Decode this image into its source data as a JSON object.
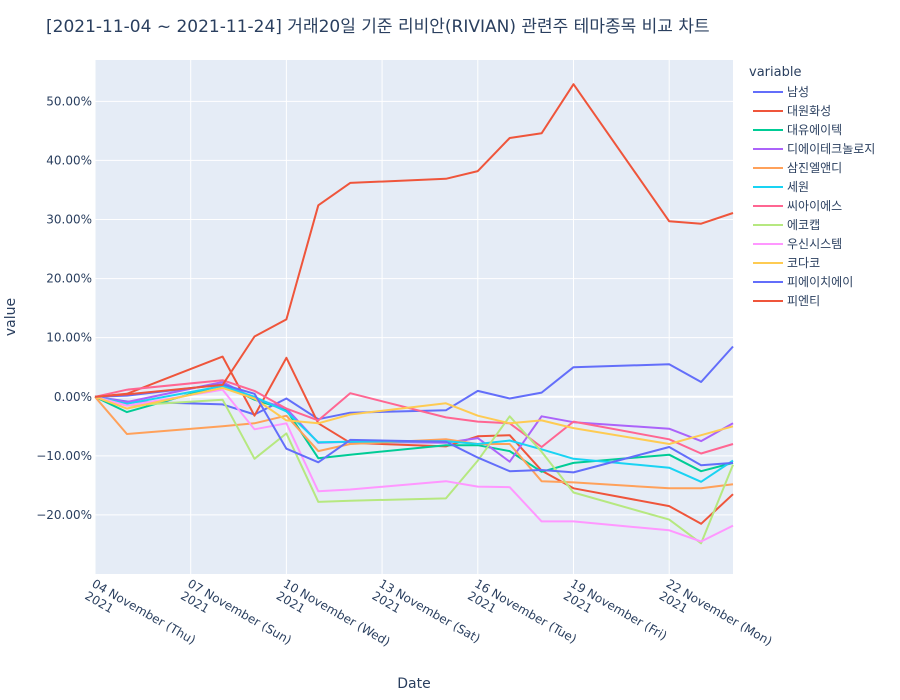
{
  "chart_data": {
    "type": "line",
    "title": "[2021-11-04 ~ 2021-11-24] 거래20일 기준 리비안(RIVIAN) 관련주 테마종목 비교 차트",
    "xlabel": "Date",
    "ylabel": "value",
    "legend_title": "variable",
    "legend_position": "right",
    "grid": true,
    "xlim": [
      "2021-11-04",
      "2021-11-24"
    ],
    "ylim": [
      -0.3,
      0.57
    ],
    "x_tick_values": [
      "2021-11-04",
      "2021-11-07",
      "2021-11-10",
      "2021-11-13",
      "2021-11-16",
      "2021-11-19",
      "2021-11-22"
    ],
    "x_tick_labels": [
      [
        "04 November (Thu)",
        "2021"
      ],
      [
        "07 November (Sun)",
        "2021"
      ],
      [
        "10 November (Wed)",
        "2021"
      ],
      [
        "13 November (Sat)",
        "2021"
      ],
      [
        "16 November (Tue)",
        "2021"
      ],
      [
        "19 November (Fri)",
        "2021"
      ],
      [
        "22 November (Mon)",
        "2021"
      ]
    ],
    "y_tick_values": [
      -0.2,
      -0.1,
      0,
      0.1,
      0.2,
      0.3,
      0.4,
      0.5
    ],
    "y_tick_labels": [
      "−20.00%",
      "−10.00%",
      "0.00%",
      "10.00%",
      "20.00%",
      "30.00%",
      "40.00%",
      "50.00%"
    ],
    "x": [
      "2021-11-04",
      "2021-11-05",
      "2021-11-08",
      "2021-11-09",
      "2021-11-10",
      "2021-11-11",
      "2021-11-12",
      "2021-11-15",
      "2021-11-16",
      "2021-11-17",
      "2021-11-18",
      "2021-11-19",
      "2021-11-22",
      "2021-11-23",
      "2021-11-24"
    ],
    "series": [
      {
        "name": "남성",
        "color": "#636efa",
        "values": [
          0,
          -0.008,
          -0.013,
          -0.03,
          -0.003,
          -0.038,
          -0.027,
          -0.023,
          0.01,
          -0.003,
          0.007,
          0.05,
          0.055,
          0.025,
          0.085
        ]
      },
      {
        "name": "대원화성",
        "color": "#EF553B",
        "values": [
          0,
          0.005,
          0.068,
          -0.032,
          0.066,
          -0.045,
          -0.078,
          -0.084,
          -0.067,
          -0.065,
          -0.125,
          -0.155,
          -0.185,
          -0.215,
          -0.165
        ]
      },
      {
        "name": "대유에이텍",
        "color": "#00cc96",
        "values": [
          0,
          -0.026,
          0.02,
          -0.005,
          -0.022,
          -0.104,
          -0.098,
          -0.082,
          -0.082,
          -0.092,
          -0.127,
          -0.112,
          -0.098,
          -0.126,
          -0.112
        ]
      },
      {
        "name": "디에이테크놀로지",
        "color": "#ab63fa",
        "values": [
          0,
          -0.009,
          0.025,
          -0.003,
          -0.02,
          -0.078,
          -0.076,
          -0.078,
          -0.07,
          -0.11,
          -0.033,
          -0.043,
          -0.054,
          -0.075,
          -0.045
        ]
      },
      {
        "name": "삼진엘앤디",
        "color": "#FFA15A",
        "values": [
          0,
          -0.063,
          -0.05,
          -0.045,
          -0.032,
          -0.092,
          -0.08,
          -0.072,
          -0.08,
          -0.08,
          -0.143,
          -0.145,
          -0.155,
          -0.155,
          -0.148
        ]
      },
      {
        "name": "세원",
        "color": "#19d3f3",
        "values": [
          0,
          -0.012,
          0.018,
          0.0,
          -0.025,
          -0.077,
          -0.076,
          -0.075,
          -0.08,
          -0.074,
          -0.089,
          -0.105,
          -0.12,
          -0.144,
          -0.108
        ]
      },
      {
        "name": "씨아이에스",
        "color": "#FF6692",
        "values": [
          0,
          0.012,
          0.028,
          0.01,
          -0.02,
          -0.04,
          0.006,
          -0.035,
          -0.042,
          -0.045,
          -0.085,
          -0.042,
          -0.072,
          -0.096,
          -0.08
        ]
      },
      {
        "name": "에코캡",
        "color": "#B6E880",
        "values": [
          0,
          -0.015,
          -0.005,
          -0.105,
          -0.062,
          -0.178,
          -0.176,
          -0.172,
          -0.108,
          -0.033,
          -0.093,
          -0.162,
          -0.208,
          -0.248,
          -0.115
        ]
      },
      {
        "name": "우신시스템",
        "color": "#FF97FF",
        "values": [
          0,
          -0.015,
          0.012,
          -0.055,
          -0.045,
          -0.16,
          -0.157,
          -0.143,
          -0.152,
          -0.153,
          -0.211,
          -0.211,
          -0.226,
          -0.245,
          -0.218
        ]
      },
      {
        "name": "코다코",
        "color": "#FECB52",
        "values": [
          0,
          -0.02,
          0.015,
          -0.003,
          -0.04,
          -0.045,
          -0.03,
          -0.011,
          -0.032,
          -0.045,
          -0.04,
          -0.053,
          -0.08,
          -0.065,
          -0.05
        ]
      },
      {
        "name": "피에이치에이",
        "color": "#636efa",
        "values": [
          0,
          0.002,
          0.021,
          0.005,
          -0.088,
          -0.111,
          -0.073,
          -0.076,
          -0.103,
          -0.126,
          -0.124,
          -0.128,
          -0.085,
          -0.116,
          -0.112
        ]
      },
      {
        "name": "피엔티",
        "color": "#EF553B",
        "values": [
          0,
          0.004,
          0.02,
          0.102,
          0.131,
          0.324,
          0.362,
          0.369,
          0.382,
          0.438,
          0.446,
          0.529,
          0.297,
          0.293,
          0.311
        ]
      }
    ]
  }
}
